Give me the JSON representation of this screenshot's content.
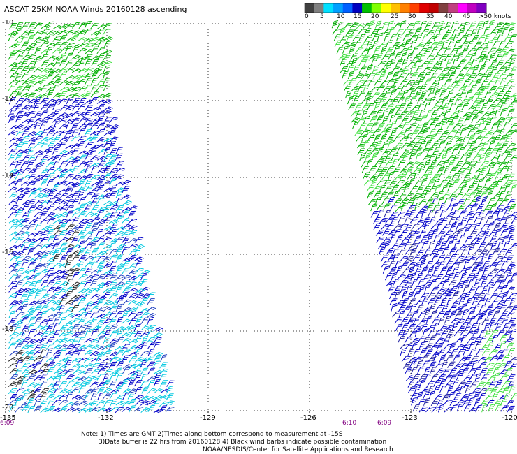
{
  "title": "ASCAT 25KM NOAA Winds 20160128 ascending",
  "legend": {
    "ticks": [
      "0",
      "5",
      "10",
      "15",
      "20",
      "25",
      "30",
      "35",
      "40",
      "45",
      ">50 knots"
    ],
    "colors": [
      "#404040",
      "#808080",
      "#00e0ff",
      "#00a0ff",
      "#0060ff",
      "#0000c0",
      "#00c000",
      "#80ff00",
      "#ffff00",
      "#ffc000",
      "#ff8000",
      "#ff4000",
      "#e00000",
      "#c00000",
      "#804040",
      "#c04080",
      "#ff00ff",
      "#c000c0",
      "#8000c0"
    ]
  },
  "map": {
    "lat_labels": [
      "-10",
      "-12",
      "-14",
      "-16",
      "-18",
      "-20"
    ],
    "lon_labels": [
      "-135",
      "-132",
      "-129",
      "-126",
      "-123",
      "-120"
    ],
    "time_labels": [
      "6:09",
      "6:10",
      "6:09"
    ],
    "barb_colors": {
      "calm": "#222222",
      "light": "#00c8e0",
      "moderate": "#0000c8",
      "fresh": "#00b000",
      "strong": "#40e040"
    }
  },
  "notes": [
    "Note: 1) Times are GMT 2)Times along bottom correspond to measurement at -15S",
    "3)Data buffer is 22 hrs from 20160128 4) Black wind barbs indicate possible contamination",
    "NOAA/NESDIS/Center for Satellite Applications and Research"
  ]
}
